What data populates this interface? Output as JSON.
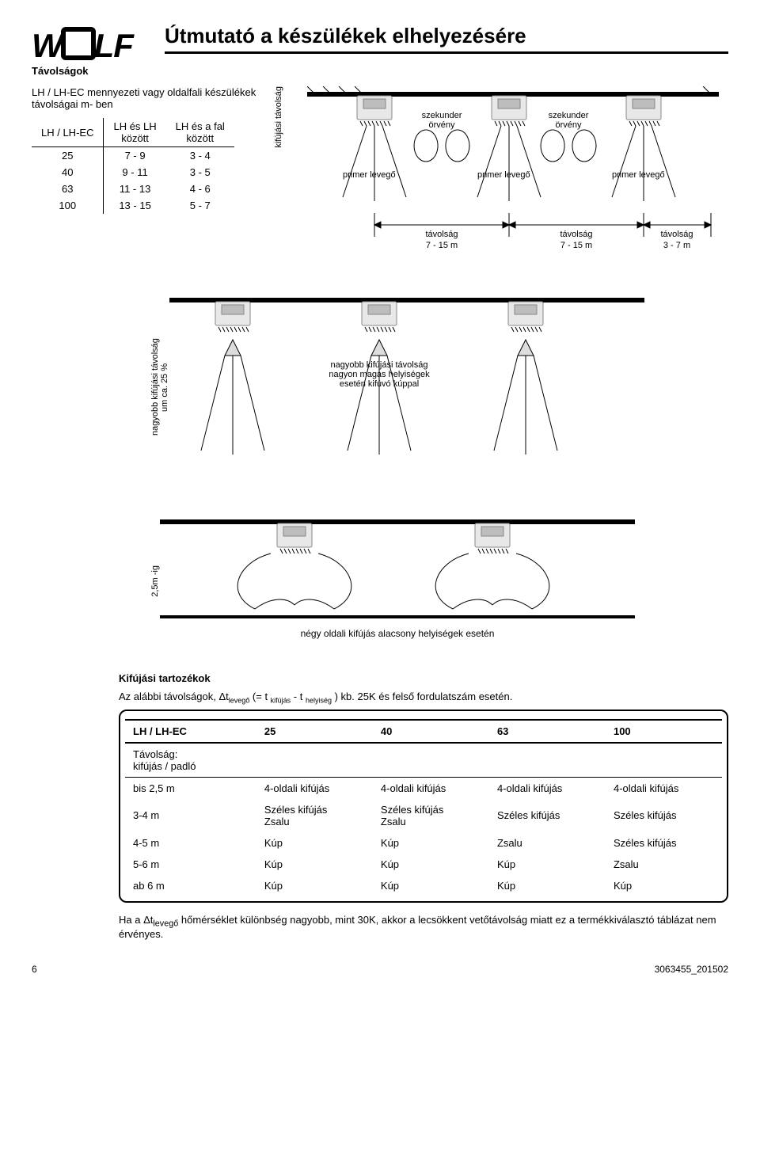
{
  "logo": {
    "text_before": "W",
    "text_after": "LF"
  },
  "title": "Útmutató a készülékek elhelyezésére",
  "sub_heading": "Távolságok",
  "note": "LH / LH-EC mennyezeti vagy oldalfali készülékek távolságai m- ben",
  "dist_table": {
    "headers": [
      "LH / LH-EC",
      "LH és LH\nközött",
      "LH és a fal\nközött"
    ],
    "rows": [
      [
        "25",
        "7 - 9",
        "3 - 4"
      ],
      [
        "40",
        "9 - 11",
        "3 - 5"
      ],
      [
        "63",
        "11 - 13",
        "4 - 6"
      ],
      [
        "100",
        "13 - 15",
        "5 - 7"
      ]
    ]
  },
  "diagram1": {
    "vlabel": "kifújási távolság",
    "szekunder": "szekunder\nörvény",
    "primer": "primer levegő",
    "tav_label": "távolság",
    "tav_val1": "7 - 15 m",
    "tav_val2": "7 - 15 m",
    "tav_val3": "3 - 7 m"
  },
  "diagram2": {
    "vlabel1": "nagyobb kifújási távolság",
    "vlabel2": "um ca. 25 %",
    "text": "nagyobb kifújási távolság\nnagyon magas helyiségek\nesetén kifúvó kúppal"
  },
  "diagram3": {
    "vlabel": "2,5m -ig",
    "caption": "négy oldali kifújás alacsony helyiségek esetén"
  },
  "accessories": {
    "heading": "Kifújási tartozékok",
    "formula_pre": "Az alábbi távolságok, Δt",
    "formula_sub1": "levegő",
    "formula_mid": " (= t ",
    "formula_sub2": "kifújás",
    "formula_mid2": " - t ",
    "formula_sub3": "helyiség",
    "formula_post": " ) kb. 25K és felső fordulatszám esetén.",
    "table": {
      "header": [
        "LH / LH-EC",
        "25",
        "40",
        "63",
        "100"
      ],
      "subhead": "Távolság:\nkifújás / padló",
      "rows": [
        [
          "bis 2,5 m",
          "4-oldali kifújás",
          "4-oldali kifújás",
          "4-oldali kifújás",
          "4-oldali kifújás"
        ],
        [
          "3-4 m",
          "Széles kifújás\nZsalu",
          "Széles kifújás\nZsalu",
          "Széles kifújás",
          "Széles kifújás"
        ],
        [
          "4-5 m",
          "Kúp",
          "Kúp",
          "Zsalu",
          "Széles kifújás"
        ],
        [
          "5-6 m",
          "Kúp",
          "Kúp",
          "Kúp",
          "Zsalu"
        ],
        [
          "ab 6 m",
          "Kúp",
          "Kúp",
          "Kúp",
          "Kúp"
        ]
      ]
    }
  },
  "final_note_pre": "Ha a Δt",
  "final_note_sub": "levegő",
  "final_note_post": " hőmérséklet különbség nagyobb, mint 30K, akkor a lecsökkent vetőtávolság miatt ez a termékkiválasztó táblázat nem érvényes.",
  "footer": {
    "page": "6",
    "docnum": "3063455_201502"
  }
}
